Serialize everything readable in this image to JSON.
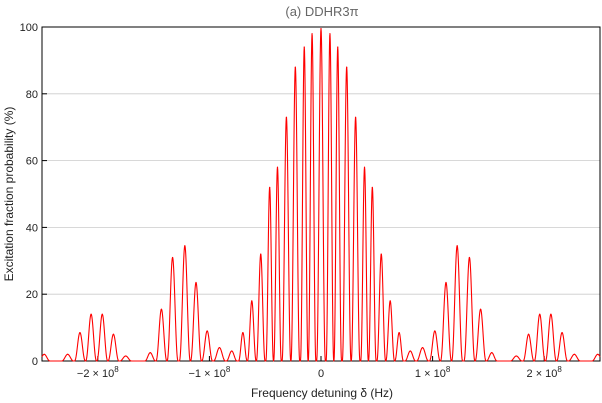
{
  "chart_data": {
    "type": "line",
    "title": "(a) DDHR3π",
    "xlabel": "Frequency detuning δ (Hz)",
    "ylabel": "Excitation fraction probability (%)",
    "xlim": [
      -250000000.0,
      250000000.0
    ],
    "ylim": [
      0,
      100
    ],
    "x_ticks": [
      -200000000.0,
      -100000000.0,
      0,
      100000000.0,
      200000000.0
    ],
    "x_tick_labels": [
      "−2 × 10^8",
      "−1 × 10^8",
      "0",
      "1 × 10^8",
      "2 × 10^8"
    ],
    "y_ticks": [
      0,
      20,
      40,
      60,
      80,
      100
    ],
    "y_tick_labels": [
      "0",
      "20",
      "40",
      "60",
      "80",
      "100"
    ],
    "grid": {
      "horizontal": true,
      "vertical": false
    },
    "series": [
      {
        "color": "#ff0000",
        "peaks": [
          {
            "x": -248000000,
            "y": 2
          },
          {
            "x": -227000000,
            "y": 2
          },
          {
            "x": -216000000,
            "y": 8.5
          },
          {
            "x": -206000000,
            "y": 14
          },
          {
            "x": -196000000,
            "y": 14
          },
          {
            "x": -186000000,
            "y": 8
          },
          {
            "x": -175000000,
            "y": 1.5
          },
          {
            "x": -153000000,
            "y": 2.5
          },
          {
            "x": -143000000,
            "y": 15.5
          },
          {
            "x": -133000000,
            "y": 31
          },
          {
            "x": -122000000,
            "y": 34.5
          },
          {
            "x": -112000000,
            "y": 23.5
          },
          {
            "x": -102000000,
            "y": 9
          },
          {
            "x": -91000000,
            "y": 4
          },
          {
            "x": -80000000,
            "y": 3
          },
          {
            "x": -70000000,
            "y": 8.5
          },
          {
            "x": -62000000,
            "y": 18
          },
          {
            "x": -54000000,
            "y": 32
          },
          {
            "x": -46000000,
            "y": 52
          },
          {
            "x": -39000000,
            "y": 58
          },
          {
            "x": -31000000,
            "y": 73
          },
          {
            "x": -23000000,
            "y": 88
          },
          {
            "x": -15000000,
            "y": 94
          },
          {
            "x": -8000000,
            "y": 98
          },
          {
            "x": 0,
            "y": 99.5
          },
          {
            "x": 8000000,
            "y": 98
          },
          {
            "x": 15000000,
            "y": 94
          },
          {
            "x": 23000000,
            "y": 88
          },
          {
            "x": 31000000,
            "y": 73
          },
          {
            "x": 39000000,
            "y": 58
          },
          {
            "x": 46000000,
            "y": 52
          },
          {
            "x": 54000000,
            "y": 32
          },
          {
            "x": 62000000,
            "y": 18
          },
          {
            "x": 70000000,
            "y": 8.5
          },
          {
            "x": 80000000,
            "y": 3
          },
          {
            "x": 91000000,
            "y": 4
          },
          {
            "x": 102000000,
            "y": 9
          },
          {
            "x": 112000000,
            "y": 23.5
          },
          {
            "x": 122000000,
            "y": 34.5
          },
          {
            "x": 133000000,
            "y": 31
          },
          {
            "x": 143000000,
            "y": 15.5
          },
          {
            "x": 153000000,
            "y": 2.5
          },
          {
            "x": 175000000,
            "y": 1.5
          },
          {
            "x": 186000000,
            "y": 8
          },
          {
            "x": 196000000,
            "y": 14
          },
          {
            "x": 206000000,
            "y": 14
          },
          {
            "x": 216000000,
            "y": 8.5
          },
          {
            "x": 227000000,
            "y": 2
          },
          {
            "x": 248000000,
            "y": 2
          }
        ]
      }
    ]
  }
}
